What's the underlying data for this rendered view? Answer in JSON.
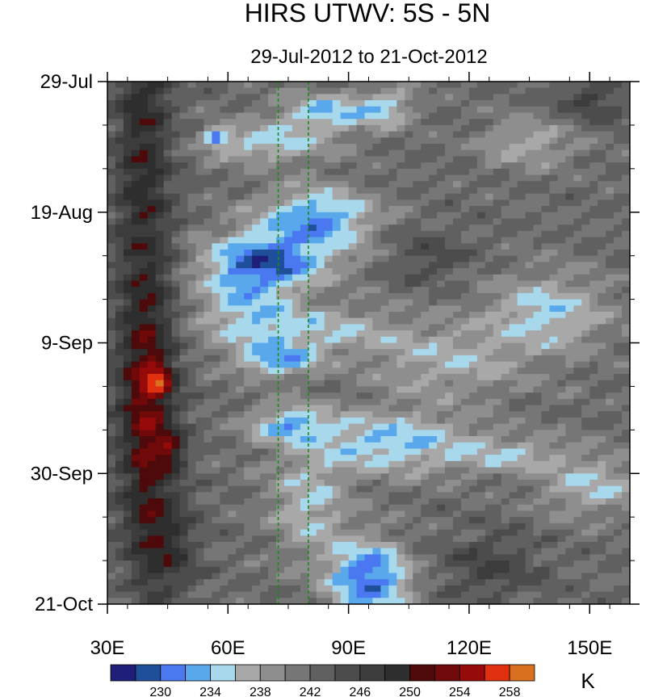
{
  "chart_data": {
    "type": "heatmap",
    "title": "HIRS UTWV: 5S - 5N",
    "subtitle": "29-Jul-2012 to 21-Oct-2012",
    "x_ticks": [
      {
        "value": 30,
        "label": "30E"
      },
      {
        "value": 60,
        "label": "60E"
      },
      {
        "value": 90,
        "label": "90E"
      },
      {
        "value": 120,
        "label": "120E"
      },
      {
        "value": 150,
        "label": "150E"
      }
    ],
    "xlim": [
      30,
      160
    ],
    "y_ticks": [
      {
        "day": 0,
        "label": "29-Jul"
      },
      {
        "day": 21,
        "label": "19-Aug"
      },
      {
        "day": 42,
        "label": "9-Sep"
      },
      {
        "day": 63,
        "label": "30-Sep"
      },
      {
        "day": 84,
        "label": "21-Oct"
      }
    ],
    "ylim_days": [
      0,
      84
    ],
    "reference_lines_lon": [
      72.5,
      80
    ],
    "colorbar": {
      "unit": "K",
      "levels": [
        228,
        230,
        232,
        234,
        236,
        238,
        240,
        242,
        244,
        246,
        248,
        250,
        252,
        254,
        256,
        258,
        260
      ],
      "colors": [
        "#1f1f7a",
        "#1f4f9a",
        "#4a78f0",
        "#5aa8ec",
        "#a8d8ec",
        "#a8a8a8",
        "#8e8e8e",
        "#767676",
        "#606060",
        "#4c4c4c",
        "#3c3c3c",
        "#2e2e2e",
        "#4e0a0a",
        "#700a0a",
        "#960a0a",
        "#e03010",
        "#d87020"
      ],
      "labels": [
        "230",
        "234",
        "238",
        "242",
        "246",
        "250",
        "254",
        "258"
      ]
    },
    "field": {
      "background_value": 244,
      "features": [
        {
          "lon": 39,
          "day": 10,
          "rlon": 7,
          "rday": 40,
          "amp": 7
        },
        {
          "lon": 40,
          "day": 55,
          "rlon": 7,
          "rday": 20,
          "amp": 9
        },
        {
          "lon": 43,
          "day": 48,
          "rlon": 3.5,
          "rday": 2.5,
          "amp": 7
        },
        {
          "lon": 46,
          "day": 59,
          "rlon": 3.5,
          "rday": 2.5,
          "amp": 7
        },
        {
          "lon": 45,
          "day": 75,
          "rlon": 8,
          "rday": 8,
          "amp": 5
        },
        {
          "lon": 65,
          "day": 33,
          "rlon": 12,
          "rday": 8,
          "amp": -7
        },
        {
          "lon": 70,
          "day": 10,
          "rlon": 15,
          "rday": 3,
          "amp": -7
        },
        {
          "lon": 57,
          "day": 9,
          "rlon": 3,
          "rday": 1.5,
          "amp": -9
        },
        {
          "lon": 82,
          "day": 22,
          "rlon": 14,
          "rday": 5,
          "amp": -10
        },
        {
          "lon": 72,
          "day": 29,
          "rlon": 16,
          "rday": 4,
          "amp": -8
        },
        {
          "lon": 85,
          "day": 5,
          "rlon": 13,
          "rday": 3,
          "amp": -8
        },
        {
          "lon": 80,
          "day": 40,
          "rlon": 22,
          "rday": 4,
          "amp": -6
        },
        {
          "lon": 72,
          "day": 45,
          "rlon": 10,
          "rday": 2.5,
          "amp": -8
        },
        {
          "lon": 75,
          "day": 55,
          "rlon": 10,
          "rday": 3,
          "amp": -8
        },
        {
          "lon": 100,
          "day": 58,
          "rlon": 20,
          "rday": 5,
          "amp": -8
        },
        {
          "lon": 95,
          "day": 80,
          "rlon": 10,
          "rday": 6,
          "amp": -12
        },
        {
          "lon": 80,
          "day": 68,
          "rlon": 10,
          "rday": 8,
          "amp": -6
        },
        {
          "lon": 140,
          "day": 37,
          "rlon": 15,
          "rday": 6,
          "amp": -7
        },
        {
          "lon": 150,
          "day": 65,
          "rlon": 12,
          "rday": 5,
          "amp": -6
        },
        {
          "lon": 115,
          "day": 45,
          "rlon": 20,
          "rday": 6,
          "amp": -5
        },
        {
          "lon": 130,
          "day": 60,
          "rlon": 15,
          "rday": 3,
          "amp": -5
        },
        {
          "lon": 135,
          "day": 10,
          "rlon": 12,
          "rday": 4,
          "amp": -5
        },
        {
          "lon": 100,
          "day": 4,
          "rlon": 6,
          "rday": 3,
          "amp": -6
        },
        {
          "lon": 110,
          "day": 28,
          "rlon": 10,
          "rday": 4,
          "amp": 3
        },
        {
          "lon": 125,
          "day": 78,
          "rlon": 12,
          "rday": 5,
          "amp": 4
        },
        {
          "lon": 150,
          "day": 3,
          "rlon": 8,
          "rday": 4,
          "amp": 4
        }
      ]
    }
  }
}
